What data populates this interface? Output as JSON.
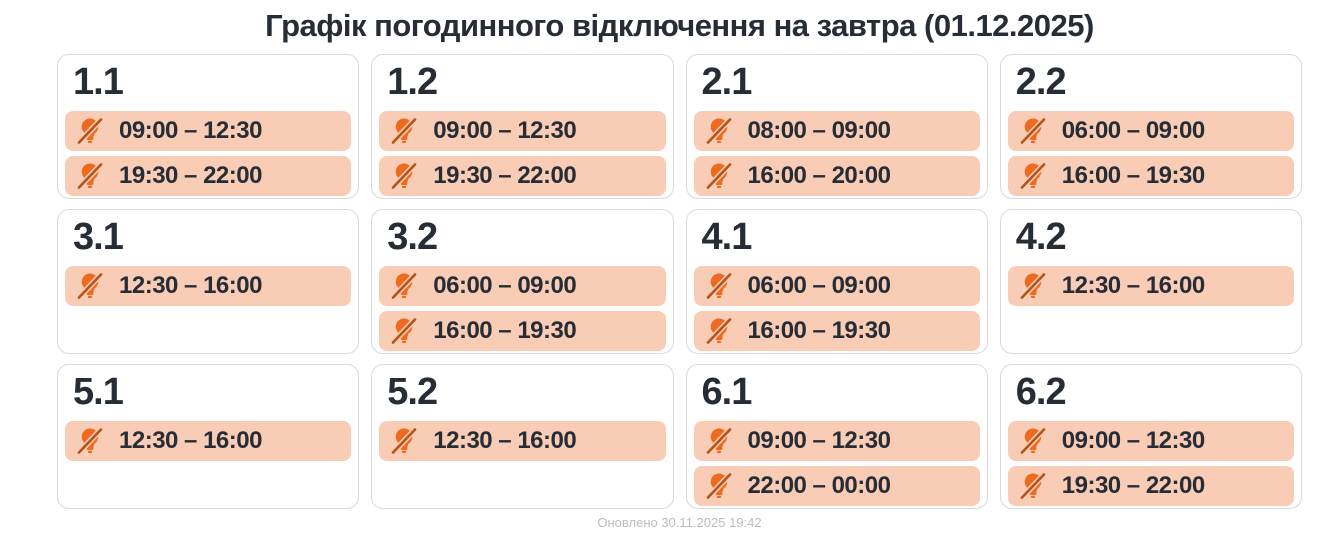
{
  "page": {
    "title": "Графік погодинного відключення на завтра (01.12.2025)",
    "updated": "Оновлено 30.11.2025 19:42"
  },
  "colors": {
    "accent_orange": "#ED6A1F",
    "slash_orange": "#B5541A",
    "slot_bg": "#F8CCB5",
    "text_dark": "#272D36",
    "card_border": "#D8DADC",
    "muted_text": "#B9BDC2"
  },
  "cards": [
    {
      "group": "1.1",
      "slots": [
        "09:00 – 12:30",
        "19:30 – 22:00"
      ]
    },
    {
      "group": "1.2",
      "slots": [
        "09:00 – 12:30",
        "19:30 – 22:00"
      ]
    },
    {
      "group": "2.1",
      "slots": [
        "08:00 – 09:00",
        "16:00 – 20:00"
      ]
    },
    {
      "group": "2.2",
      "slots": [
        "06:00 – 09:00",
        "16:00 – 19:30"
      ]
    },
    {
      "group": "3.1",
      "slots": [
        "12:30 – 16:00"
      ]
    },
    {
      "group": "3.2",
      "slots": [
        "06:00 – 09:00",
        "16:00 – 19:30"
      ]
    },
    {
      "group": "4.1",
      "slots": [
        "06:00 – 09:00",
        "16:00 – 19:30"
      ]
    },
    {
      "group": "4.2",
      "slots": [
        "12:30 – 16:00"
      ]
    },
    {
      "group": "5.1",
      "slots": [
        "12:30 – 16:00"
      ]
    },
    {
      "group": "5.2",
      "slots": [
        "12:30 – 16:00"
      ]
    },
    {
      "group": "6.1",
      "slots": [
        "09:00 – 12:30",
        "22:00 – 00:00"
      ]
    },
    {
      "group": "6.2",
      "slots": [
        "09:00 – 12:30",
        "19:30 – 22:00"
      ]
    }
  ]
}
